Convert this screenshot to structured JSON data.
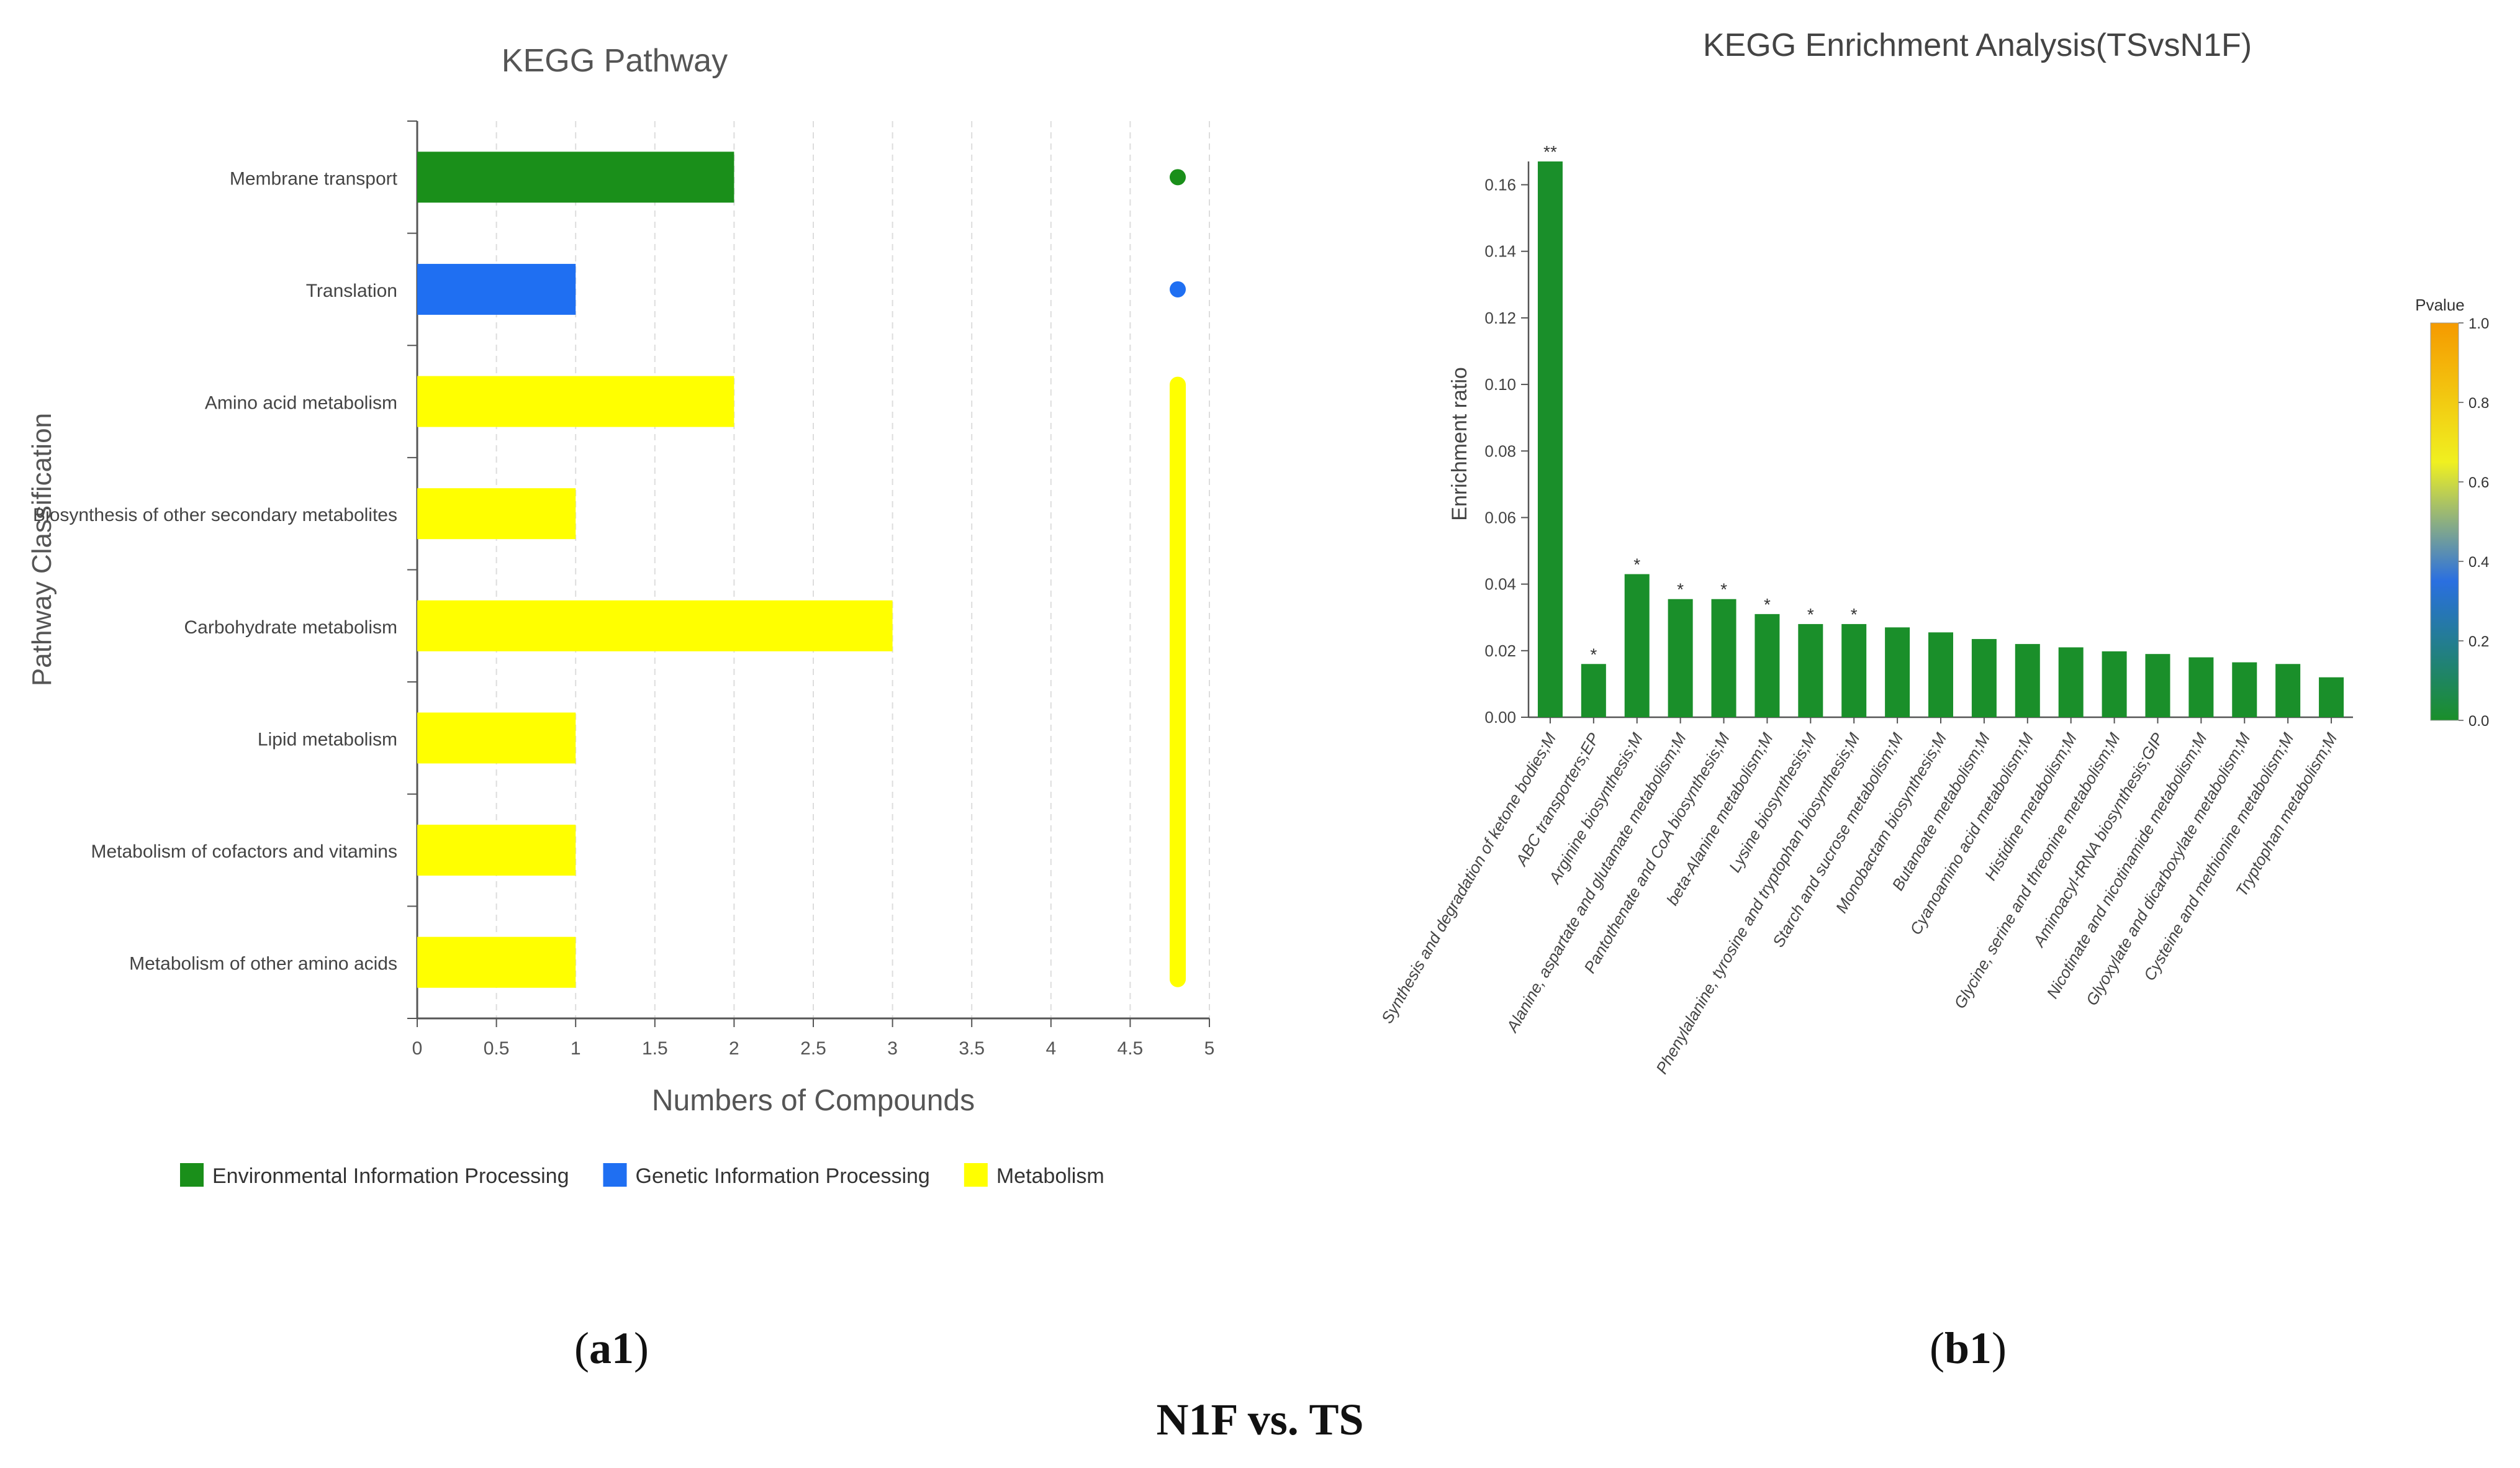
{
  "figure": {
    "caption_a": {
      "open": "(",
      "label": "a1",
      "close": ")"
    },
    "caption_b": {
      "open": "(",
      "label": "b1",
      "close": ")"
    },
    "caption_main": "N1F vs. TS"
  },
  "colors": {
    "env": "#1a8f1a",
    "gen": "#1f6ff2",
    "met": "#ffff00",
    "enrich_bar": "#1a8f2a",
    "axis": "#555555",
    "grid": "#dddddd"
  },
  "chart_data": [
    {
      "type": "bar",
      "orientation": "horizontal",
      "title": "KEGG Pathway",
      "xlabel": "Numbers of Compounds",
      "ylabel": "Pathway Classification",
      "xlim": [
        0,
        5
      ],
      "xticks": [
        "0",
        "0.5",
        "1",
        "1.5",
        "2",
        "2.5",
        "3",
        "3.5",
        "4",
        "4.5",
        "5"
      ],
      "categories": [
        "Membrane transport",
        "Translation",
        "Amino acid metabolism",
        "Biosynthesis of other secondary metabolites",
        "Carbohydrate metabolism",
        "Lipid metabolism",
        "Metabolism of cofactors and vitamins",
        "Metabolism of other amino acids"
      ],
      "values": [
        2,
        1,
        2,
        1,
        3,
        1,
        1,
        1
      ],
      "groups": [
        "env",
        "gen",
        "met",
        "met",
        "met",
        "met",
        "met",
        "met"
      ],
      "legend": [
        {
          "key": "env",
          "label": "Environmental Information Processing"
        },
        {
          "key": "gen",
          "label": "Genetic Information Processing"
        },
        {
          "key": "met",
          "label": "Metabolism"
        }
      ],
      "grid": true
    },
    {
      "type": "bar",
      "orientation": "vertical",
      "title": "KEGG Enrichment Analysis(TSvsN1F)",
      "xlabel": "",
      "ylabel": "Enrichment ratio",
      "ylim": [
        0,
        0.167
      ],
      "yticks": [
        "0.00",
        "0.02",
        "0.04",
        "0.06",
        "0.08",
        "0.10",
        "0.12",
        "0.14",
        "0.16"
      ],
      "categories": [
        "Synthesis and degradation of ketone bodies;M",
        "ABC transporters;EP",
        "Arginine biosynthesis;M",
        "Alanine, aspartate and glutamate metabolism;M",
        "Pantothenate and CoA biosynthesis;M",
        "beta-Alanine metabolism;M",
        "Lysine biosynthesis;M",
        "Phenylalanine, tyrosine and tryptophan biosynthesis;M",
        "Starch and sucrose metabolism;M",
        "Monobactam biosynthesis;M",
        "Butanoate metabolism;M",
        "Cyanoamino acid metabolism;M",
        "Histidine metabolism;M",
        "Glycine, serine and threonine metabolism;M",
        "Aminoacyl-tRNA biosynthesis;GIP",
        "Nicotinate and nicotinamide metabolism;M",
        "Glyoxylate and dicarboxylate metabolism;M",
        "Cysteine and methionine metabolism;M",
        "Tryptophan metabolism;M"
      ],
      "values": [
        0.167,
        0.016,
        0.043,
        0.0355,
        0.0355,
        0.031,
        0.028,
        0.028,
        0.027,
        0.0255,
        0.0235,
        0.022,
        0.021,
        0.0198,
        0.019,
        0.018,
        0.0165,
        0.016,
        0.012
      ],
      "significance": [
        "**",
        "*",
        "*",
        "*",
        "*",
        "*",
        "*",
        "*",
        "",
        "",
        "",
        "",
        "",
        "",
        "",
        "",
        "",
        "",
        ""
      ],
      "colorbar": {
        "title": "Pvalue",
        "ticks": [
          "0.0",
          "0.2",
          "0.4",
          "0.6",
          "0.8",
          "1.0"
        ],
        "stops": [
          "#1a8f2a",
          "#2a6fe0",
          "#f0f020",
          "#f59a00"
        ]
      }
    }
  ]
}
